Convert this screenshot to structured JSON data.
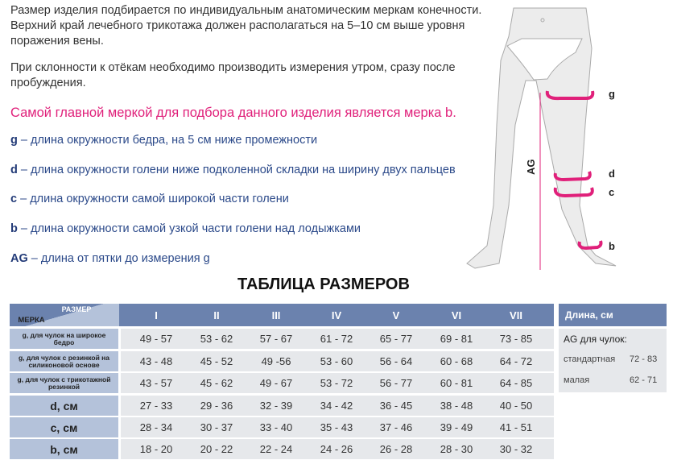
{
  "intro": {
    "p1": "Размер изделия подбирается по индивидуальным анатомическим меркам конечности. Верхний край лечебного трикотажа должен располагаться на 5–10 см выше уровня поражения вены.",
    "p2": "При склонности к отёкам необходимо производить измерения утром, сразу после пробуждения.",
    "highlight": "Самой главной меркой для подбора данного изделия является мерка b."
  },
  "definitions": [
    {
      "key": "g",
      "text": " – длина окружности бедра, на 5 см ниже промежности"
    },
    {
      "key": "d",
      "text": " – длина окружности голени ниже подколенной складки на ширину двух пальцев"
    },
    {
      "key": "c",
      "text": " – длина окружности самой широкой части голени"
    },
    {
      "key": "b",
      "text": " – длина окружности самой узкой части голени над лодыжками"
    },
    {
      "key": "AG",
      "text": " – длина от пятки до измерения g"
    }
  ],
  "figure": {
    "labels": [
      "g",
      "d",
      "c",
      "b"
    ],
    "ag": "AG",
    "accent": "#e0207a"
  },
  "table": {
    "title": "ТАБЛИЦА РАЗМЕРОВ",
    "corner_top": "РАЗМЕР",
    "corner_bottom": "МЕРКА",
    "sizes": [
      "I",
      "II",
      "III",
      "IV",
      "V",
      "VI",
      "VII"
    ],
    "rows": [
      {
        "label": "g, для чулок на широкое бедро",
        "values": [
          "49 - 57",
          "53 - 62",
          "57 - 67",
          "61 - 72",
          "65 - 77",
          "69 - 81",
          "73 - 85"
        ]
      },
      {
        "label": "g, для чулок с  резинкой на силиконовой основе",
        "values": [
          "43 - 48",
          "45 - 52",
          "49 -56",
          "53 - 60",
          "56 - 64",
          "60 - 68",
          "64 - 72"
        ]
      },
      {
        "label": "g, для чулок с трикотажной резинкой",
        "values": [
          "43 - 57",
          "45 - 62",
          "49 - 67",
          "53 - 72",
          "56 - 77",
          "60 - 81",
          "64 - 85"
        ]
      },
      {
        "label": "d, см",
        "values": [
          "27 - 33",
          "29 - 36",
          "32 - 39",
          "34 - 42",
          "36 - 45",
          "38 - 48",
          "40 - 50"
        ]
      },
      {
        "label": "c, см",
        "values": [
          "28 - 34",
          "30 - 37",
          "33 - 40",
          "35 - 43",
          "37 - 46",
          "39 - 49",
          "41 - 51"
        ]
      },
      {
        "label": "b, см",
        "values": [
          "18 - 20",
          "20 - 22",
          "22 - 24",
          "24 - 26",
          "26 - 28",
          "28 - 30",
          "30 - 32"
        ]
      }
    ]
  },
  "length": {
    "header": "Длина, см",
    "subtitle": "AG для чулок:",
    "rows": [
      {
        "label": "стандартная",
        "value": "72 - 83"
      },
      {
        "label": "малая",
        "value": "62 - 71"
      }
    ]
  },
  "colors": {
    "header": "#6b82ae",
    "label_cell": "#b4c2da",
    "value_cell": "#e6e8eb",
    "definition": "#2c4a8a",
    "highlight": "#e0207a"
  }
}
